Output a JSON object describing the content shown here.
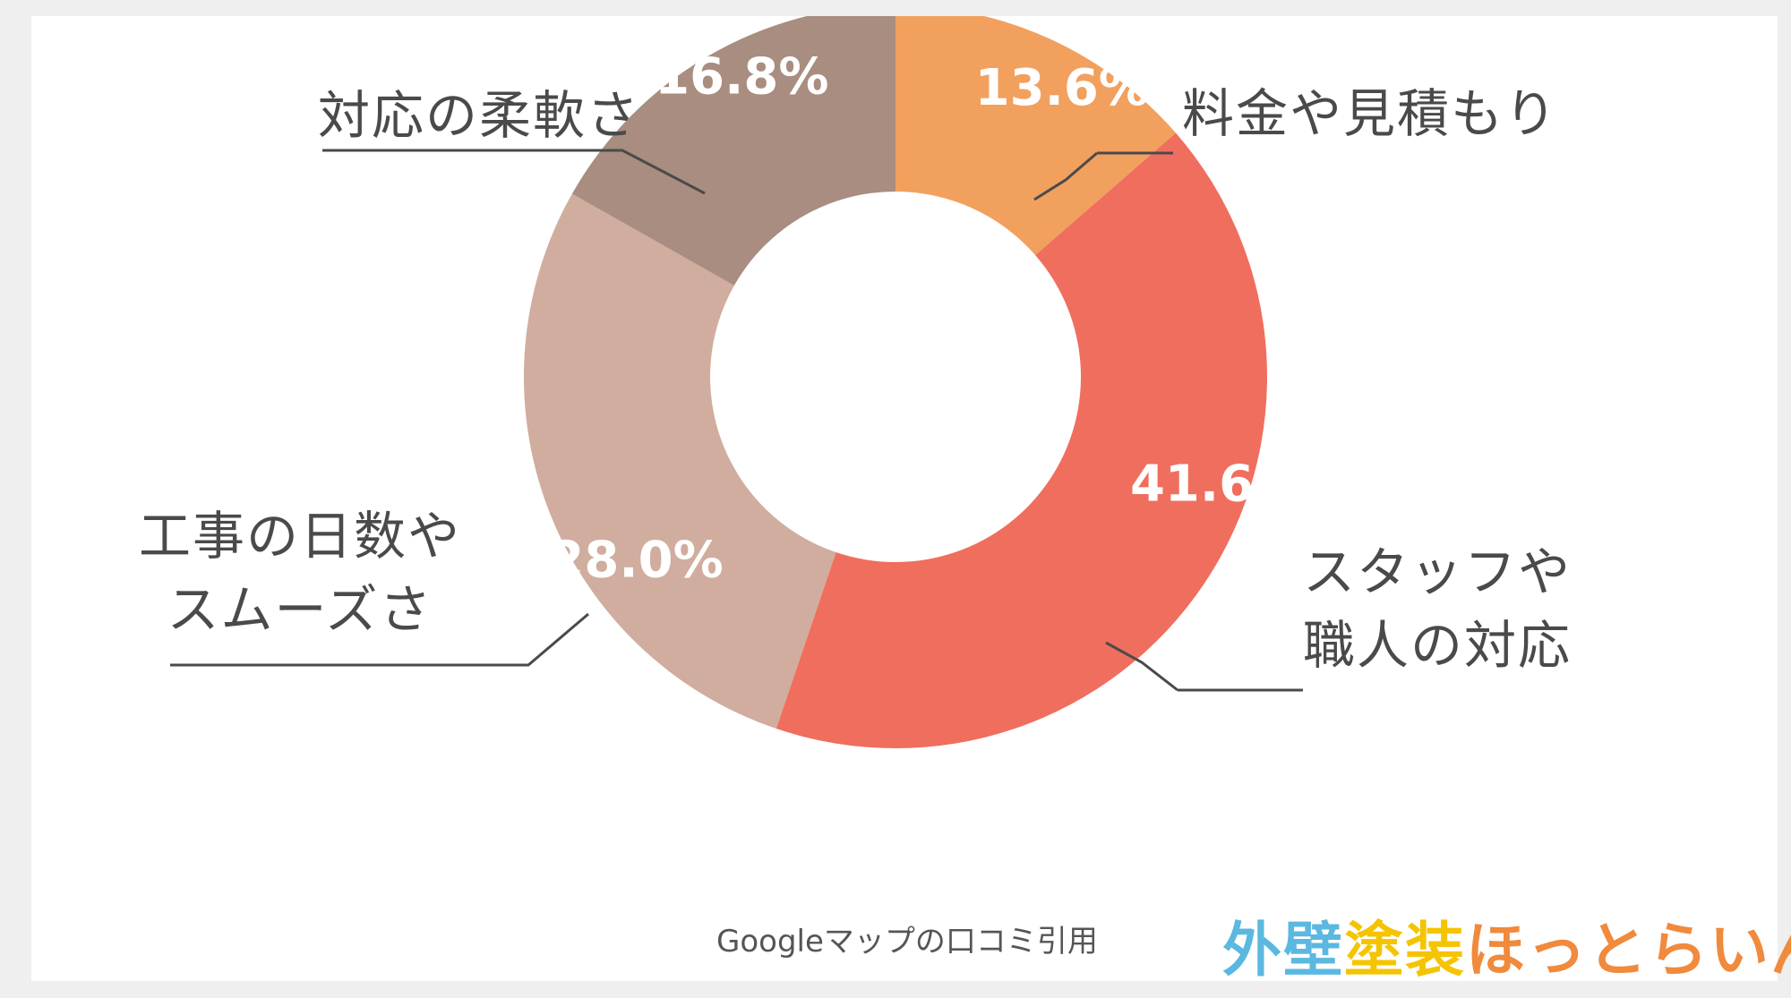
{
  "chart_data": {
    "type": "pie",
    "subtype": "donut",
    "slices": [
      {
        "label": "料金や見積もり",
        "value": 13.6,
        "value_label": "13.6%",
        "color": "#f2a05e"
      },
      {
        "label": "スタッフや\n職人の対応",
        "value": 41.6,
        "value_label": "41.6%",
        "color": "#f06e5d"
      },
      {
        "label": "工事の日数や\nスムーズさ",
        "value": 28.0,
        "value_label": "28.0%",
        "color": "#d0ad9e"
      },
      {
        "label": "対応の柔軟さ",
        "value": 16.8,
        "value_label": "16.8%",
        "color": "#a88d80"
      }
    ],
    "start": "top",
    "direction": "clockwise",
    "legend": "none (callout labels)"
  },
  "source_text": "Googleマップの口コミ引用",
  "logo": {
    "text": "外壁塗装ほっとらいん",
    "colors": {
      "gaiheki": "#5bb8e0",
      "tosou": "#f5c400",
      "hotline": "#f08a3c"
    }
  }
}
